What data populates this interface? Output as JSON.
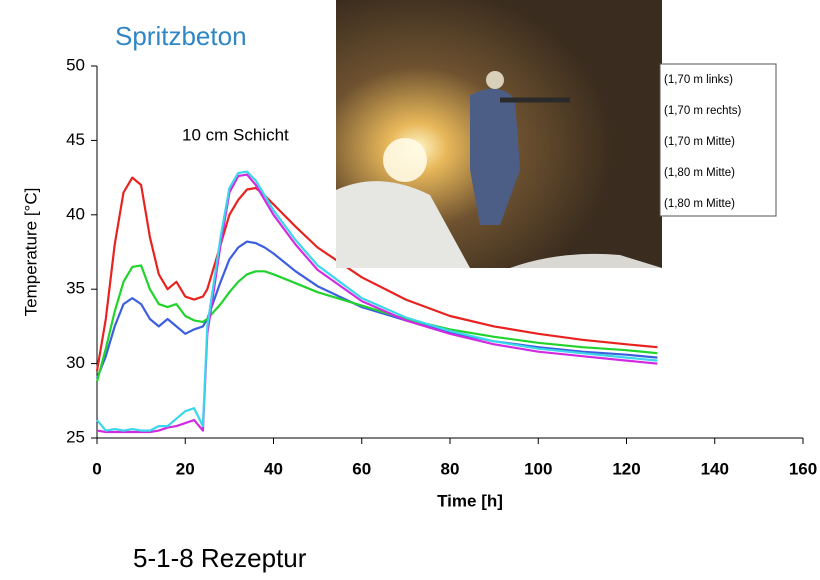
{
  "title": "Spritzbeton",
  "footer": "5-1-8 Rezeptur",
  "chart_data": {
    "type": "line",
    "annotation": "10 cm Schicht",
    "xlabel": "Time [h]",
    "ylabel": "Temperature [°C]",
    "x": [
      0,
      2,
      4,
      6,
      8,
      10,
      12,
      14,
      16,
      18,
      20,
      22,
      24,
      25,
      28,
      30,
      32,
      34,
      36,
      38,
      40,
      45,
      50,
      60,
      70,
      80,
      90,
      100,
      110,
      120,
      127
    ],
    "xlim": [
      0,
      160
    ],
    "xticks": [
      0,
      20,
      40,
      60,
      80,
      100,
      120,
      140,
      160
    ],
    "ylim": [
      25,
      50
    ],
    "yticks": [
      25,
      30,
      35,
      40,
      45,
      50
    ],
    "series": [
      {
        "name": "(1,70 m links)",
        "color": "#e8231f",
        "values": [
          29.5,
          33,
          38,
          41.5,
          42.5,
          42,
          38.5,
          36,
          35,
          35.5,
          34.5,
          34.3,
          34.5,
          35,
          38,
          40,
          41,
          41.7,
          41.8,
          41.3,
          40.7,
          39.2,
          37.8,
          35.8,
          34.3,
          33.2,
          32.5,
          32,
          31.6,
          31.3,
          31.1
        ]
      },
      {
        "name": "(1,70 m rechts)",
        "color": "#3c5fe0",
        "values": [
          29,
          30.5,
          32.5,
          34,
          34.4,
          34,
          33,
          32.5,
          33,
          32.5,
          32,
          32.3,
          32.5,
          33,
          35.5,
          37,
          37.8,
          38.2,
          38.1,
          37.8,
          37.4,
          36.2,
          35.2,
          33.8,
          32.9,
          32.1,
          31.5,
          31.1,
          30.8,
          30.6,
          30.4
        ]
      },
      {
        "name": "(1,70 m Mitte)",
        "color": "#22d32e",
        "values": [
          28.8,
          31,
          33.5,
          35.5,
          36.5,
          36.6,
          35,
          34,
          33.8,
          34,
          33.2,
          32.9,
          32.8,
          33,
          34,
          34.8,
          35.5,
          36,
          36.2,
          36.2,
          36,
          35.4,
          34.8,
          33.9,
          33,
          32.3,
          31.8,
          31.4,
          31.1,
          30.9,
          30.7
        ]
      },
      {
        "name": "(1,80 m Mitte)",
        "color": "#d12be0",
        "values": [
          25.5,
          25.4,
          25.4,
          25.4,
          25.4,
          25.4,
          25.4,
          25.5,
          25.7,
          25.8,
          26,
          26.2,
          25.5,
          32,
          38,
          41.5,
          42.6,
          42.7,
          42,
          41,
          40,
          38,
          36.3,
          34.2,
          32.9,
          32,
          31.3,
          30.8,
          30.5,
          30.2,
          30
        ]
      },
      {
        "name": "(1,80 m Mitte)",
        "color": "#3ad6ec",
        "values": [
          26.2,
          25.5,
          25.6,
          25.5,
          25.6,
          25.5,
          25.5,
          25.8,
          25.8,
          26.3,
          26.8,
          27,
          25.8,
          32.5,
          38.5,
          41.8,
          42.8,
          42.9,
          42.3,
          41.3,
          40.3,
          38.3,
          36.6,
          34.4,
          33.1,
          32.2,
          31.5,
          31,
          30.7,
          30.4,
          30.2
        ]
      }
    ]
  }
}
